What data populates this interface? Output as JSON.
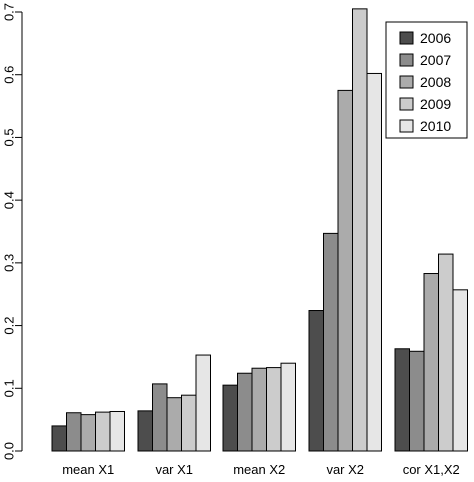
{
  "chart_data": {
    "type": "bar",
    "title": "",
    "xlabel": "",
    "ylabel": "",
    "categories": [
      "mean X1",
      "var X1",
      "mean X2",
      "var X2",
      "cor X1,X2"
    ],
    "ylim": [
      0,
      0.7
    ],
    "yticks": [
      "0.0",
      "0.1",
      "0.2",
      "0.3",
      "0.4",
      "0.5",
      "0.6",
      "0.7"
    ],
    "legend_position": "top-right",
    "grid": false,
    "series": [
      {
        "name": "2006",
        "color": "#4d4d4d",
        "values": [
          0.04,
          0.064,
          0.105,
          0.224,
          0.163
        ]
      },
      {
        "name": "2007",
        "color": "#8c8c8c",
        "values": [
          0.061,
          0.107,
          0.124,
          0.347,
          0.159
        ]
      },
      {
        "name": "2008",
        "color": "#ababab",
        "values": [
          0.058,
          0.085,
          0.132,
          0.575,
          0.283
        ]
      },
      {
        "name": "2009",
        "color": "#cccccc",
        "values": [
          0.062,
          0.089,
          0.133,
          0.705,
          0.314
        ]
      },
      {
        "name": "2010",
        "color": "#e6e6e6",
        "values": [
          0.063,
          0.153,
          0.14,
          0.602,
          0.257
        ]
      }
    ]
  }
}
